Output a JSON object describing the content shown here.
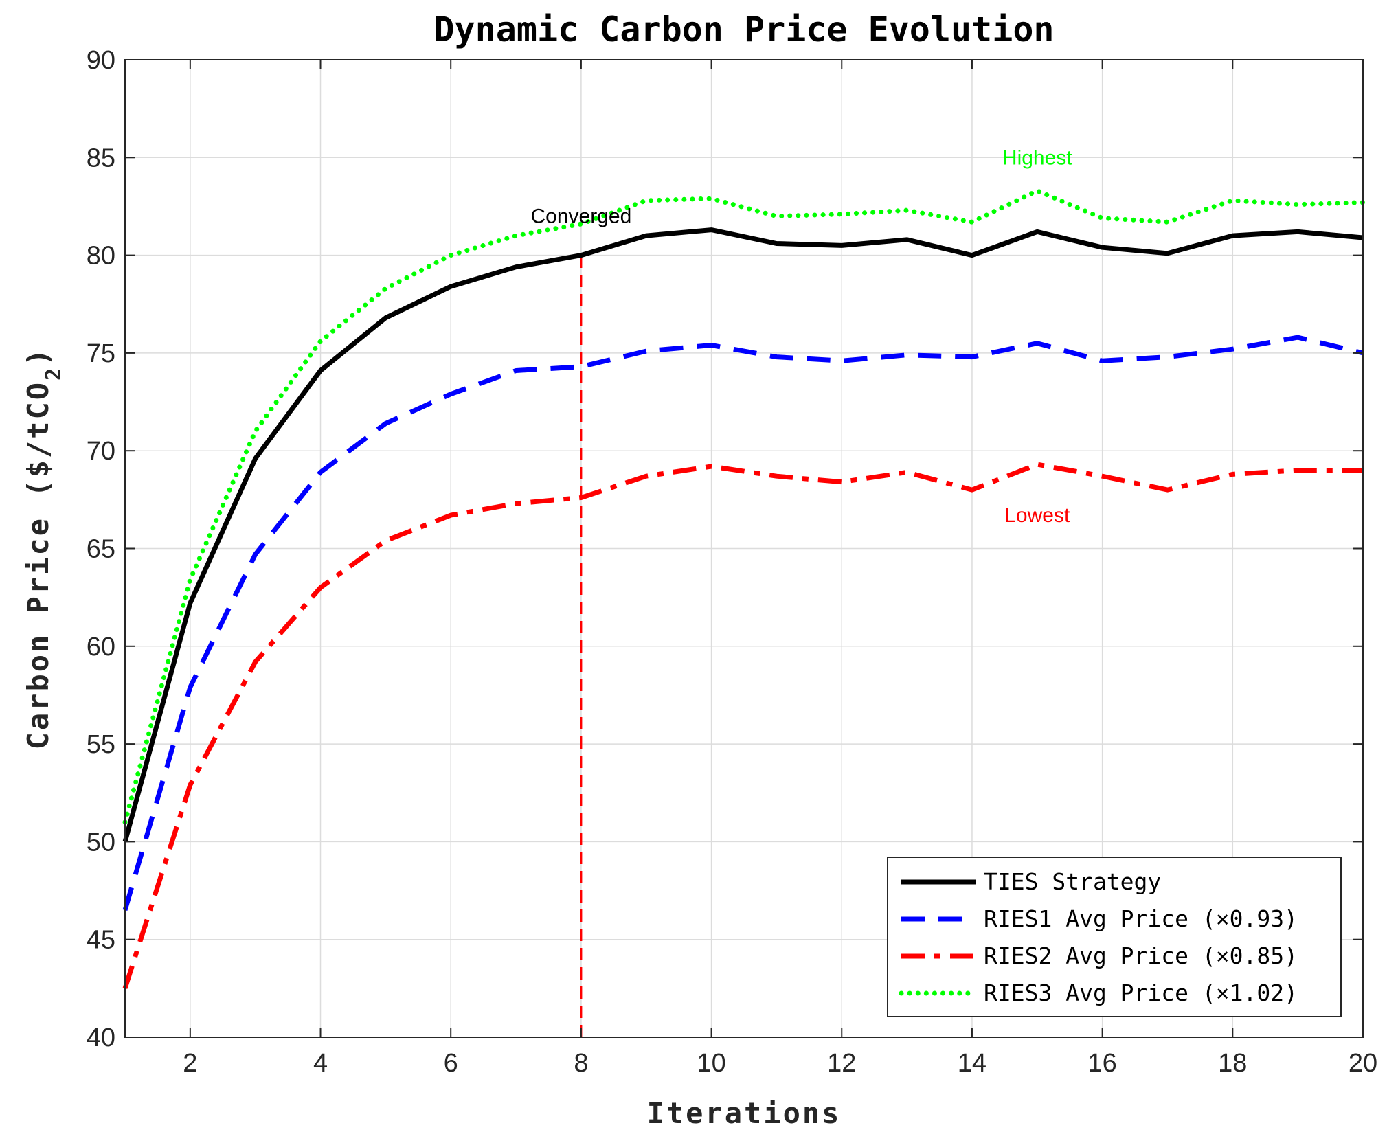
{
  "chart_data": {
    "type": "line",
    "title": "Dynamic Carbon Price Evolution",
    "xlabel": "Iterations",
    "ylabel": "Carbon Price ($/tCO",
    "ylabel_sub": "2",
    "ylabel_close": ")",
    "xlim": [
      1,
      20
    ],
    "ylim": [
      40,
      90
    ],
    "xticks": [
      2,
      4,
      6,
      8,
      10,
      12,
      14,
      16,
      18,
      20
    ],
    "yticks": [
      40,
      45,
      50,
      55,
      60,
      65,
      70,
      75,
      80,
      85,
      90
    ],
    "grid": true,
    "legend_position": "bottom-right",
    "x": [
      1,
      2,
      3,
      4,
      5,
      6,
      7,
      8,
      9,
      10,
      11,
      12,
      13,
      14,
      15,
      16,
      17,
      18,
      19,
      20
    ],
    "series": [
      {
        "name": "TIES Strategy",
        "color": "#000000",
        "style": "solid",
        "values": [
          50.0,
          62.2,
          69.6,
          74.1,
          76.8,
          78.4,
          79.4,
          80.0,
          81.0,
          81.3,
          80.6,
          80.5,
          80.8,
          80.0,
          81.2,
          80.4,
          80.1,
          81.0,
          81.2,
          80.9
        ]
      },
      {
        "name": "RIES1 Avg Price (×0.93)",
        "color": "#0000ff",
        "style": "dashed",
        "values": [
          46.5,
          57.9,
          64.7,
          68.9,
          71.4,
          72.9,
          74.1,
          74.3,
          75.1,
          75.4,
          74.8,
          74.6,
          74.9,
          74.8,
          75.5,
          74.6,
          74.8,
          75.2,
          75.8,
          75.0
        ]
      },
      {
        "name": "RIES2 Avg Price (×0.85)",
        "color": "#ff0000",
        "style": "dashdot",
        "values": [
          42.5,
          52.9,
          59.2,
          63.0,
          65.4,
          66.7,
          67.3,
          67.6,
          68.7,
          69.2,
          68.7,
          68.4,
          68.9,
          68.0,
          69.3,
          68.7,
          68.0,
          68.8,
          69.0,
          69.0
        ]
      },
      {
        "name": "RIES3 Avg Price (×1.02)",
        "color": "#00ff00",
        "style": "dotted",
        "values": [
          51.0,
          63.4,
          71.0,
          75.6,
          78.3,
          80.0,
          81.0,
          81.6,
          82.8,
          82.9,
          82.0,
          82.1,
          82.3,
          81.7,
          83.3,
          81.9,
          81.7,
          82.8,
          82.6,
          82.7
        ]
      }
    ],
    "convergence_line": {
      "x": 8,
      "color": "#ff0000"
    },
    "annotations": [
      {
        "text": "Converged",
        "x": 8,
        "y": 82.0,
        "color": "#000000"
      },
      {
        "text": "Highest",
        "x": 15,
        "y": 85.0,
        "color": "#00ff00"
      },
      {
        "text": "Lowest",
        "x": 15,
        "y": 66.7,
        "color": "#ff0000"
      }
    ]
  }
}
